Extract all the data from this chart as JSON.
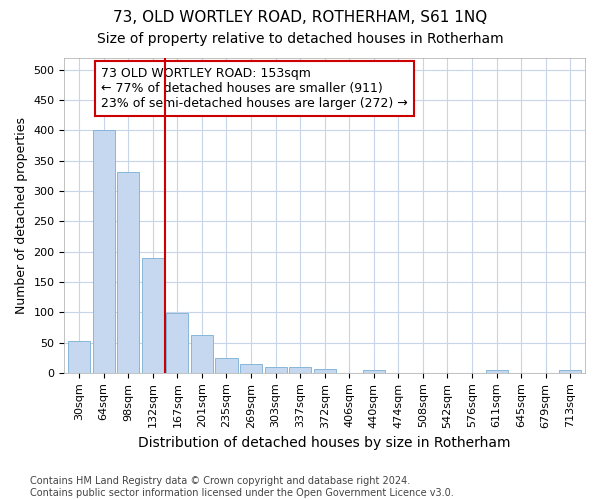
{
  "title": "73, OLD WORTLEY ROAD, ROTHERHAM, S61 1NQ",
  "subtitle": "Size of property relative to detached houses in Rotherham",
  "xlabel": "Distribution of detached houses by size in Rotherham",
  "ylabel": "Number of detached properties",
  "categories": [
    "30sqm",
    "64sqm",
    "98sqm",
    "132sqm",
    "167sqm",
    "201sqm",
    "235sqm",
    "269sqm",
    "303sqm",
    "337sqm",
    "372sqm",
    "406sqm",
    "440sqm",
    "474sqm",
    "508sqm",
    "542sqm",
    "576sqm",
    "611sqm",
    "645sqm",
    "679sqm",
    "713sqm"
  ],
  "values": [
    52,
    401,
    332,
    190,
    99,
    63,
    25,
    14,
    10,
    10,
    6,
    0,
    5,
    0,
    0,
    0,
    0,
    4,
    0,
    0,
    4
  ],
  "bar_color": "#c5d8ef",
  "bar_edge_color": "#7aafd4",
  "vline_color": "#cc0000",
  "vline_x_index": 4,
  "annotation_line1": "73 OLD WORTLEY ROAD: 153sqm",
  "annotation_line2": "← 77% of detached houses are smaller (911)",
  "annotation_line3": "23% of semi-detached houses are larger (272) →",
  "annotation_box_color": "#ffffff",
  "annotation_box_edge": "#cc0000",
  "ylim": [
    0,
    520
  ],
  "yticks": [
    0,
    50,
    100,
    150,
    200,
    250,
    300,
    350,
    400,
    450,
    500
  ],
  "bg_color": "#ffffff",
  "plot_bg_color": "#ffffff",
  "grid_color": "#c8d4e8",
  "footer": "Contains HM Land Registry data © Crown copyright and database right 2024.\nContains public sector information licensed under the Open Government Licence v3.0.",
  "title_fontsize": 11,
  "subtitle_fontsize": 10,
  "xlabel_fontsize": 10,
  "ylabel_fontsize": 9,
  "tick_fontsize": 8,
  "annotation_fontsize": 9,
  "footer_fontsize": 7
}
